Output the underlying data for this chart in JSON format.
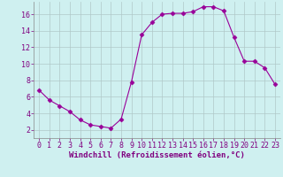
{
  "x": [
    0,
    1,
    2,
    3,
    4,
    5,
    6,
    7,
    8,
    9,
    10,
    11,
    12,
    13,
    14,
    15,
    16,
    17,
    18,
    19,
    20,
    21,
    22,
    23
  ],
  "y": [
    6.8,
    5.6,
    4.9,
    4.2,
    3.2,
    2.6,
    2.4,
    2.2,
    3.3,
    7.8,
    13.5,
    15.0,
    16.0,
    16.1,
    16.1,
    16.3,
    16.9,
    16.9,
    16.4,
    13.2,
    10.3,
    10.3,
    9.5,
    7.5
  ],
  "line_color": "#990099",
  "marker": "D",
  "marker_size": 2.5,
  "bg_color": "#cff0f0",
  "grid_color": "#b0c8c8",
  "xlabel": "Windchill (Refroidissement éolien,°C)",
  "xlabel_color": "#800080",
  "xlabel_fontsize": 6.5,
  "tick_fontsize": 6.0,
  "tick_color": "#800080",
  "xlim": [
    -0.5,
    23.5
  ],
  "ylim": [
    1.0,
    17.5
  ],
  "yticks": [
    2,
    4,
    6,
    8,
    10,
    12,
    14,
    16
  ],
  "xticks": [
    0,
    1,
    2,
    3,
    4,
    5,
    6,
    7,
    8,
    9,
    10,
    11,
    12,
    13,
    14,
    15,
    16,
    17,
    18,
    19,
    20,
    21,
    22,
    23
  ]
}
